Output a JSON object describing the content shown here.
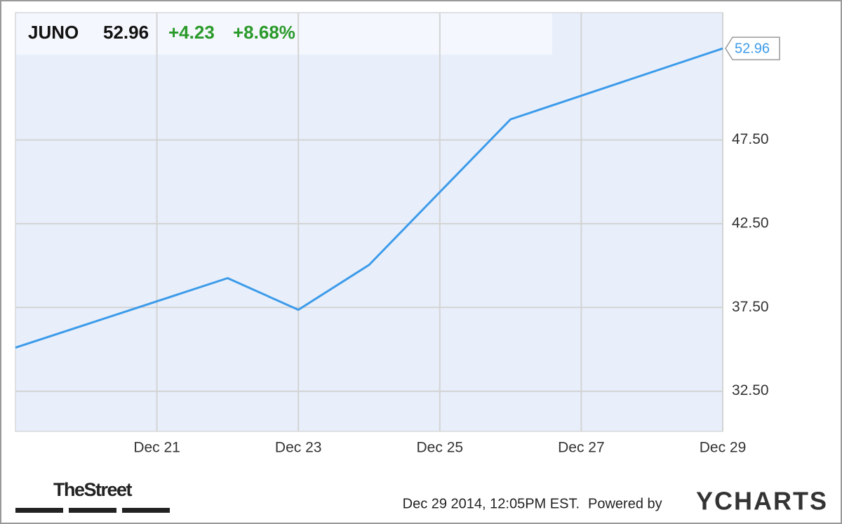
{
  "chart_data": {
    "type": "line",
    "header": {
      "ticker": "JUNO",
      "price": "52.96",
      "change": "+4.23",
      "change_pct": "+8.68%"
    },
    "x": [
      "Dec 19",
      "Dec 22",
      "Dec 23",
      "Dec 24",
      "Dec 26",
      "Dec 29"
    ],
    "series": [
      {
        "name": "JUNO",
        "color": "#3d9be9",
        "values": [
          35.1,
          39.25,
          37.36,
          40.04,
          48.73,
          52.96
        ]
      }
    ],
    "xlim": [
      "Dec 19",
      "Dec 29"
    ],
    "xticks": [
      "Dec 21",
      "Dec 23",
      "Dec 25",
      "Dec 27",
      "Dec 29"
    ],
    "ylim": [
      30.1,
      55.1
    ],
    "yticks": [
      {
        "value": 32.5,
        "label": "32.50"
      },
      {
        "value": 37.5,
        "label": "37.50"
      },
      {
        "value": 42.5,
        "label": "42.50"
      },
      {
        "value": 47.5,
        "label": "47.50"
      }
    ],
    "grid": true,
    "footer": {
      "source": "TheStreet",
      "timestamp": "Dec 29 2014, 12:05PM EST.",
      "powered": "Powered by",
      "brand": "YCHARTS"
    }
  }
}
